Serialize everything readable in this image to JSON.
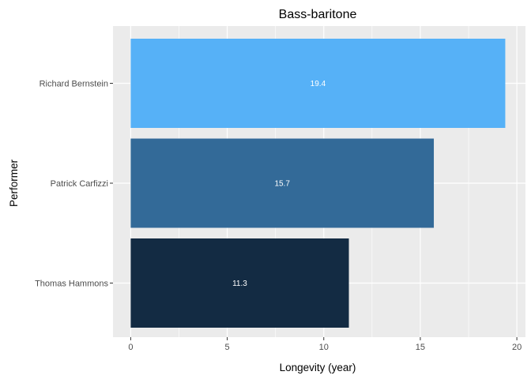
{
  "chart_data": {
    "type": "bar",
    "orientation": "horizontal",
    "title": "Bass-baritone",
    "xlabel": "Longevity (year)",
    "ylabel": "Performer",
    "categories": [
      "Richard Bernstein",
      "Patrick Carfizzi",
      "Thomas Hammons"
    ],
    "values": [
      19.4,
      15.7,
      11.3
    ],
    "value_labels": [
      "19.4",
      "15.7",
      "11.3"
    ],
    "bar_colors": [
      "#56B1F7",
      "#336A98",
      "#132B43"
    ],
    "xlim": [
      0,
      20
    ],
    "xticks": [
      0,
      5,
      10,
      15,
      20
    ],
    "xtick_labels": [
      "0",
      "5",
      "10",
      "15",
      "20"
    ],
    "grid": true,
    "legend": "none",
    "panel_background": "#EBEBEB",
    "grid_color": "#FFFFFF"
  }
}
